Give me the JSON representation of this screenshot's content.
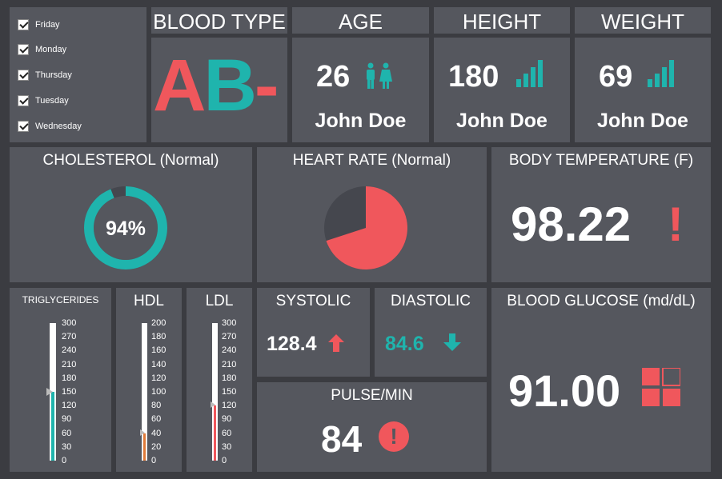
{
  "days": [
    "Friday",
    "Monday",
    "Thursday",
    "Tuesday",
    "Wednesday"
  ],
  "blood_type": {
    "title": "BLOOD TYPE",
    "letters": "AB",
    "sign": "-"
  },
  "age": {
    "title": "AGE",
    "value": "26",
    "name": "John Doe",
    "icon": "people-icon"
  },
  "height": {
    "title": "HEIGHT",
    "value": "180",
    "name": "John Doe",
    "icon": "bars-icon"
  },
  "weight": {
    "title": "WEIGHT",
    "value": "69",
    "name": "John Doe",
    "icon": "bars-icon"
  },
  "cholesterol": {
    "title": "CHOLESTEROL (Normal)",
    "value_label": "94%",
    "fraction": 0.94
  },
  "heart_rate": {
    "title": "HEART RATE (Normal)",
    "fraction": 0.7
  },
  "body_temp": {
    "title": "BODY TEMPERATURE (F)",
    "value": "98.22",
    "alert": "!"
  },
  "triglycerides": {
    "title": "TRIGLYCERIDES",
    "scale": [
      "300",
      "270",
      "240",
      "210",
      "180",
      "150",
      "120",
      "90",
      "60",
      "30",
      "0"
    ],
    "max": 300,
    "level": 150
  },
  "hdl": {
    "title": "HDL",
    "scale": [
      "200",
      "180",
      "160",
      "140",
      "120",
      "100",
      "80",
      "60",
      "40",
      "20",
      "0"
    ],
    "max": 200,
    "level": 40
  },
  "ldl": {
    "title": "LDL",
    "scale": [
      "300",
      "270",
      "240",
      "210",
      "180",
      "150",
      "120",
      "90",
      "60",
      "30",
      "0"
    ],
    "max": 300,
    "level": 120
  },
  "systolic": {
    "title": "SYSTOLIC",
    "value": "128.4",
    "trend": "up"
  },
  "diastolic": {
    "title": "DIASTOLIC",
    "value": "84.6",
    "trend": "down"
  },
  "pulse": {
    "title": "PULSE/MIN",
    "value": "84",
    "alert": "!"
  },
  "glucose": {
    "title": "BLOOD GLUCOSE (md/dL)",
    "value": "91.00"
  },
  "colors": {
    "teal": "#1fb4ad",
    "red": "#f0575c",
    "panel": "#55575e",
    "dark": "#45474e",
    "orange": "#e07b39"
  }
}
